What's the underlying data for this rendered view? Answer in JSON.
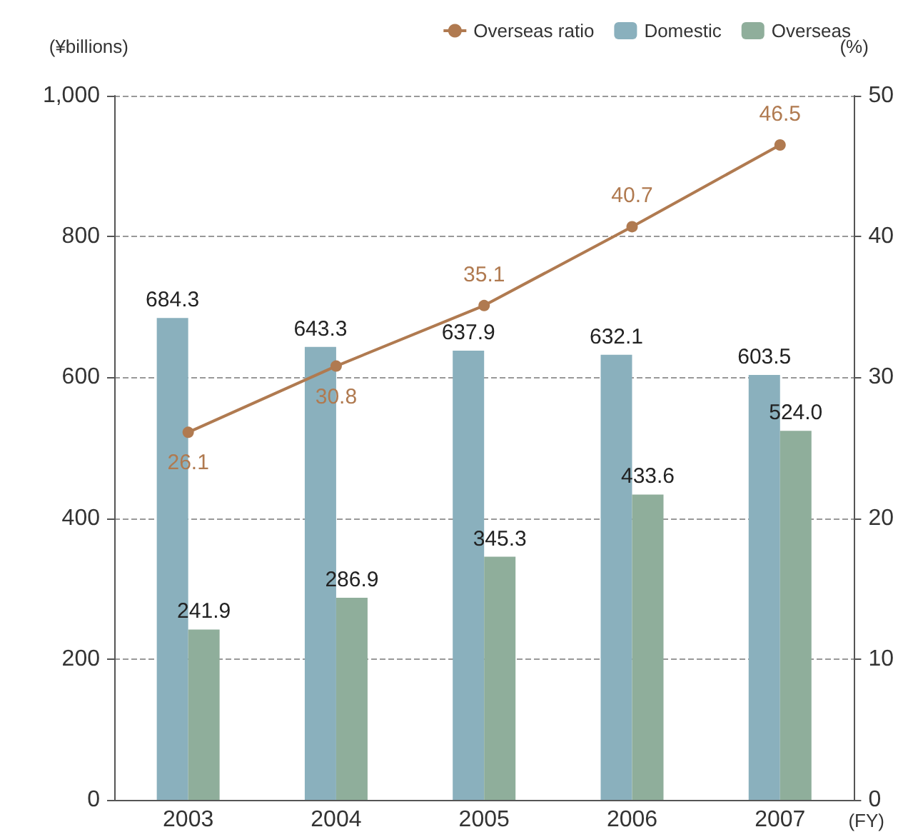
{
  "chart_data": {
    "type": "bar",
    "xlabel": "(FY)",
    "ylabel": "(¥billions)",
    "y2label": "(%)",
    "categories": [
      "2003",
      "2004",
      "2005",
      "2006",
      "2007"
    ],
    "series": [
      {
        "name": "Overseas ratio",
        "type": "line",
        "axis": "y2",
        "color": "#b07a50",
        "values": [
          26.1,
          30.8,
          35.1,
          40.7,
          46.5
        ]
      },
      {
        "name": "Domestic",
        "color": "#8ab0bd",
        "values": [
          684.3,
          643.3,
          637.9,
          632.1,
          603.5
        ]
      },
      {
        "name": "Overseas",
        "color": "#8fae9b",
        "values": [
          241.9,
          286.9,
          345.3,
          433.6,
          524.0
        ],
        "value_labels": [
          "241.9",
          "286.9",
          "345.3",
          "433.6",
          "524.0"
        ]
      }
    ],
    "ylim": [
      0,
      1000
    ],
    "yticks": [
      0,
      200,
      400,
      600,
      800,
      {
        "value": 1000,
        "label": "1,000"
      }
    ],
    "y2lim": [
      0,
      50
    ],
    "y2ticks": [
      0,
      10,
      20,
      30,
      40,
      50
    ],
    "data_labels": true,
    "grid": "y",
    "legend": "top right",
    "marker": "circle"
  }
}
